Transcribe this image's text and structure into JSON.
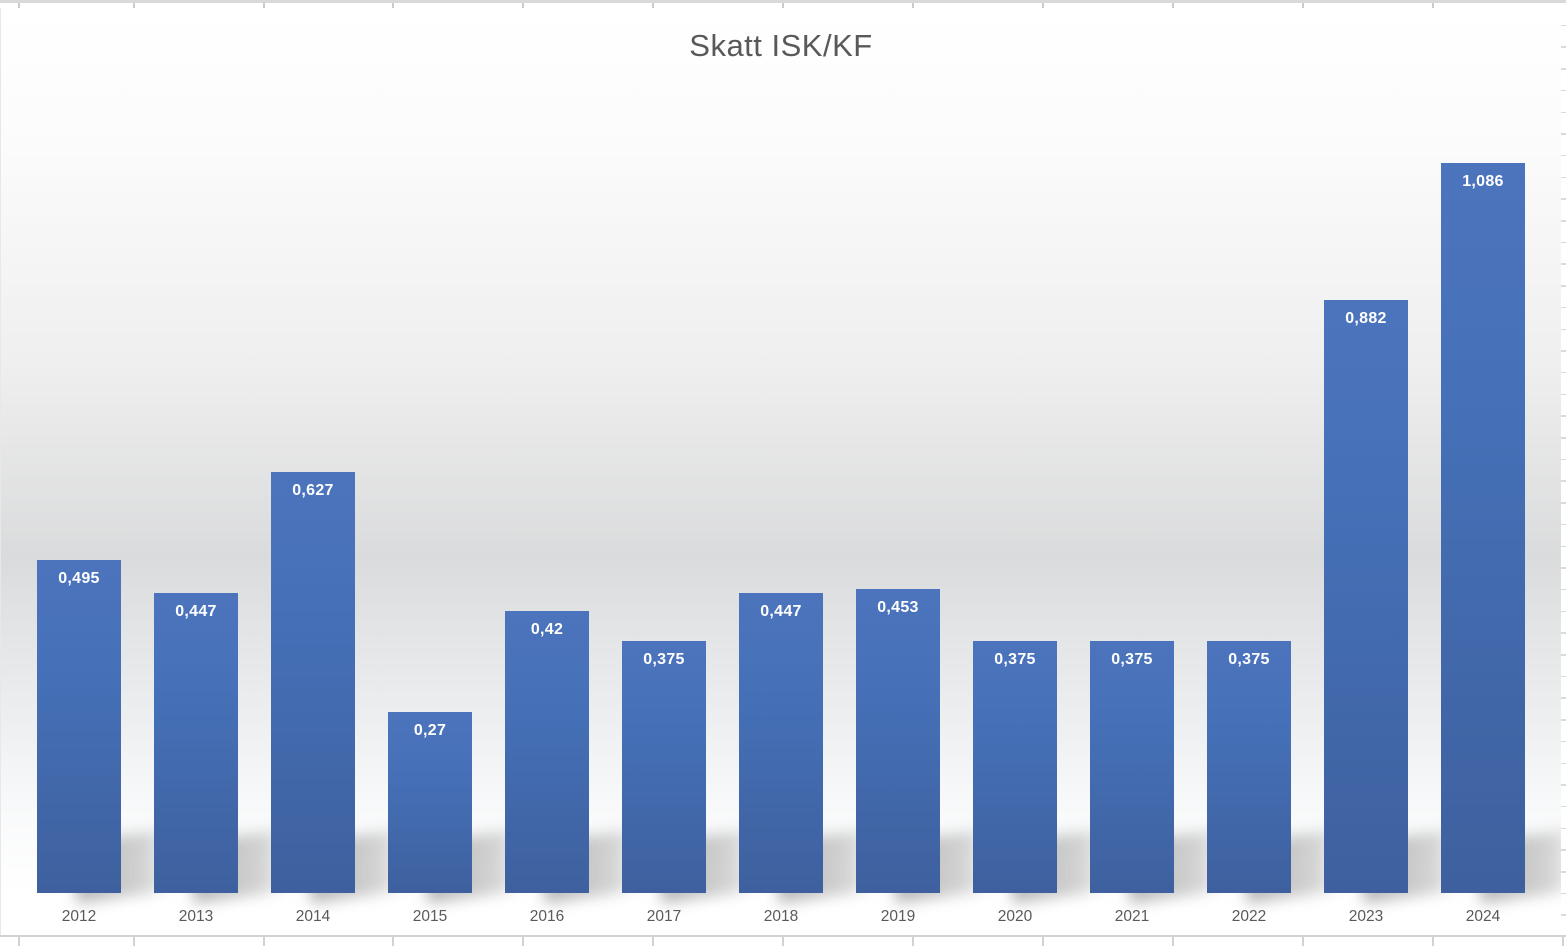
{
  "chart_data": {
    "type": "bar",
    "title": "Skatt ISK/KF",
    "categories": [
      "2012",
      "2013",
      "2014",
      "2015",
      "2016",
      "2017",
      "2018",
      "2019",
      "2020",
      "2021",
      "2022",
      "2023",
      "2024"
    ],
    "values": [
      0.495,
      0.447,
      0.627,
      0.27,
      0.42,
      0.375,
      0.447,
      0.453,
      0.375,
      0.375,
      0.375,
      0.882,
      1.086
    ],
    "value_labels": [
      "0,495",
      "0,447",
      "0,627",
      "0,27",
      "0,42",
      "0,375",
      "0,447",
      "0,453",
      "0,375",
      "0,375",
      "0,375",
      "0,882",
      "1,086"
    ],
    "xlabel": "",
    "ylabel": "",
    "ylim": [
      0,
      1.32
    ],
    "legend": "none",
    "gridlines": "off",
    "data_labels": "inside-end",
    "decimal_separator": ",",
    "colors": {
      "bar_top": "#4c74bd",
      "bar_bottom": "#3e609e",
      "data_label": "#ffffff",
      "text": "#595959",
      "background_mid": "#dadbdc"
    }
  }
}
